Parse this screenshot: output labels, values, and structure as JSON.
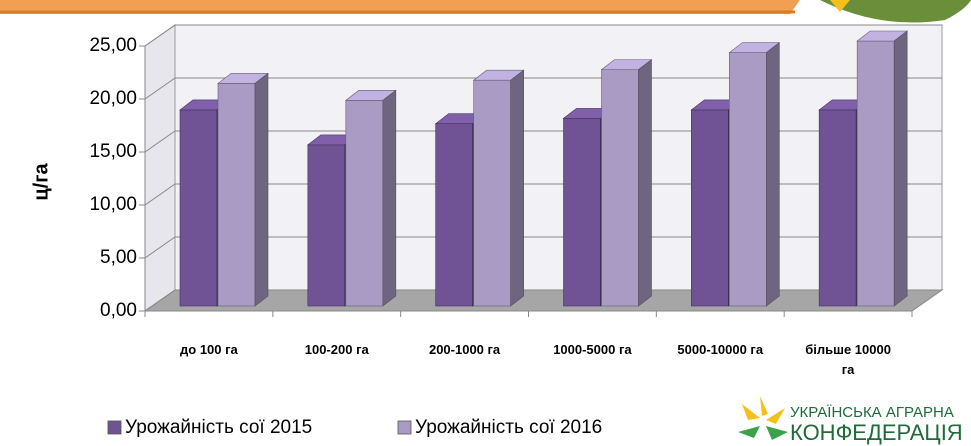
{
  "chart_data": {
    "type": "bar3d",
    "y_label": "ц/га",
    "categories": [
      "до 100 га",
      "100-200 га",
      "200-1000 га",
      "1000-5000 га",
      "5000-10000 га",
      "більше 10000 га"
    ],
    "series": [
      {
        "name": "Урожайність сої 2015",
        "color": "#6f5395",
        "values": [
          18.5,
          15.2,
          17.2,
          17.7,
          18.5,
          18.5
        ]
      },
      {
        "name": "Урожайність сої 2016",
        "color": "#a99bc4",
        "values": [
          21.0,
          19.4,
          21.3,
          22.3,
          23.9,
          25.0
        ]
      }
    ],
    "ylim": [
      0,
      25
    ],
    "yticks": [
      {
        "value": 0,
        "label": "0,00"
      },
      {
        "value": 5,
        "label": "5,00"
      },
      {
        "value": 10,
        "label": "10,00"
      },
      {
        "value": 15,
        "label": "15,00"
      },
      {
        "value": 20,
        "label": "20,00"
      },
      {
        "value": 25,
        "label": "25,00"
      }
    ],
    "grid": true
  },
  "logo": [
    "УКРАЇНСЬКА АГРАРНА",
    "КОНФЕДЕРАЦІЯ"
  ]
}
